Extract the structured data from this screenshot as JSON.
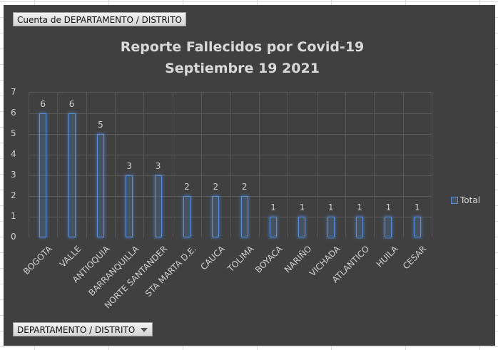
{
  "pivot": {
    "value_field": "Cuenta de DEPARTAMENTO  / DISTRITO",
    "axis_field": "DEPARTAMENTO  / DISTRITO"
  },
  "title": {
    "line1": "Reporte Fallecidos por Covid-19",
    "line2": "Septiembre 19 2021"
  },
  "legend": {
    "label": "Total"
  },
  "colors": {
    "background": "#404040",
    "bar_outline": "#5b8fd6",
    "text": "#d0d0d0",
    "gridline": "#5a5a5a"
  },
  "y_axis": {
    "ticks": [
      "0",
      "1",
      "2",
      "3",
      "4",
      "5",
      "6",
      "7"
    ]
  },
  "chart_data": {
    "type": "bar",
    "title": "Reporte Fallecidos por Covid-19 Septiembre 19 2021",
    "xlabel": "",
    "ylabel": "",
    "ylim": [
      0,
      7
    ],
    "grid": true,
    "legend_position": "right",
    "categories": [
      "BOGOTA",
      "VALLE",
      "ANTIOQUIA",
      "BARRANQUILLA",
      "NORTE SANTANDER",
      "STA MARTA D.E.",
      "CAUCA",
      "TOLIMA",
      "BOYACA",
      "NARIÑO",
      "VICHADA",
      "ATLANTICO",
      "HUILA",
      "CESAR"
    ],
    "series": [
      {
        "name": "Total",
        "values": [
          6,
          6,
          5,
          3,
          3,
          2,
          2,
          2,
          1,
          1,
          1,
          1,
          1,
          1
        ]
      }
    ],
    "data_labels": [
      "6",
      "6",
      "5",
      "3",
      "3",
      "2",
      "2",
      "2",
      "1",
      "1",
      "1",
      "1",
      "1",
      "1"
    ]
  }
}
